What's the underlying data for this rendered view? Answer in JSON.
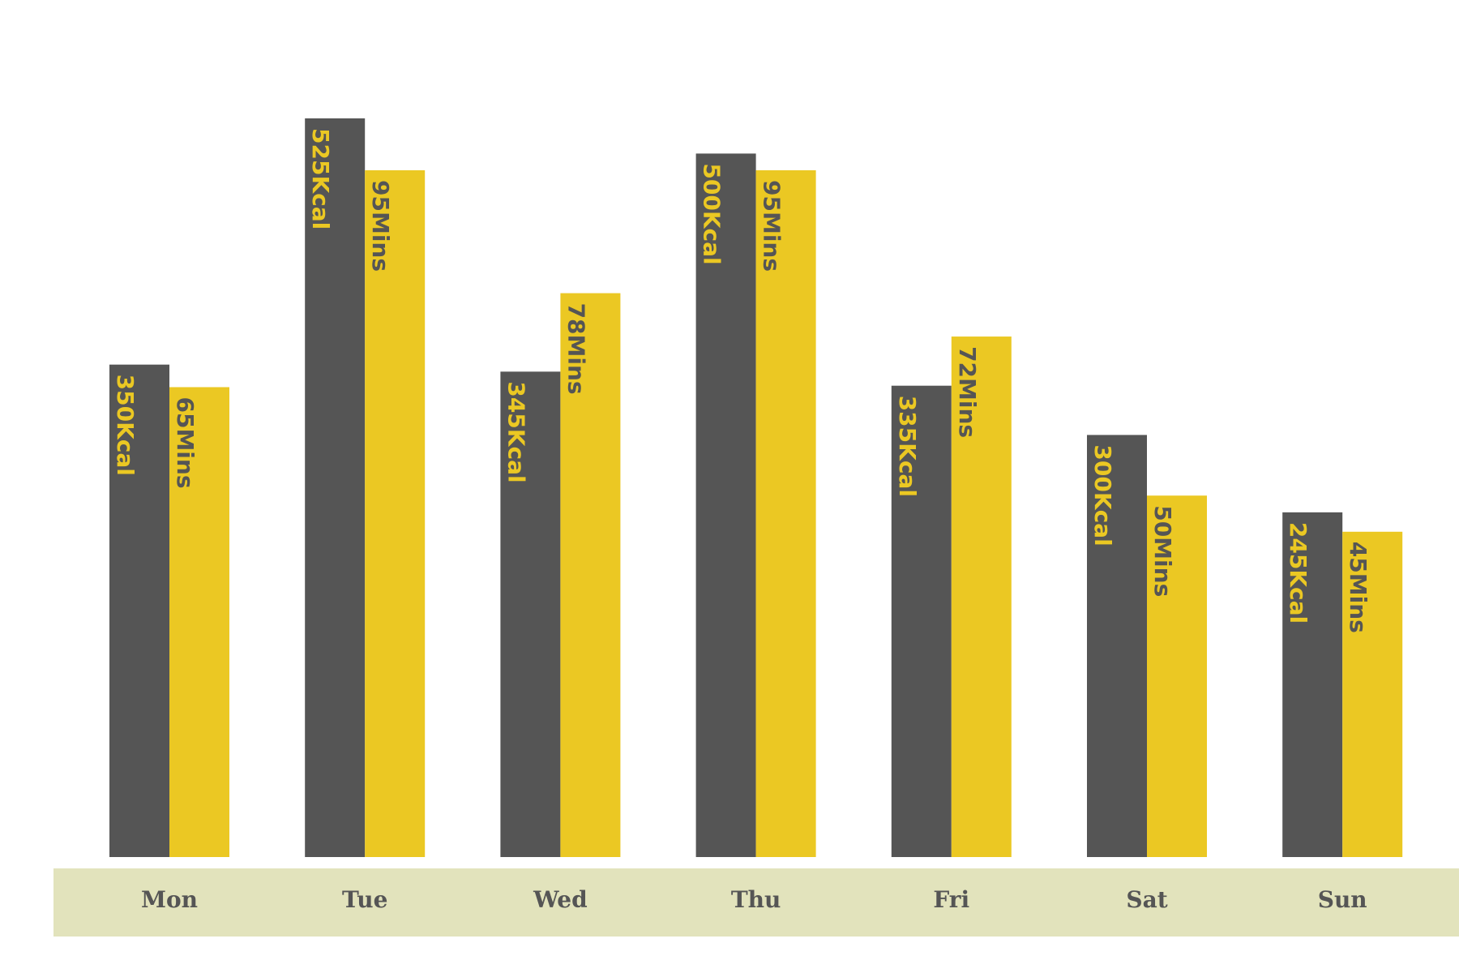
{
  "colors": {
    "calories": "#555555",
    "minutes": "#EBC823",
    "axis_band": "#E2E3BC",
    "day_text": "#555555"
  },
  "chart_data": {
    "type": "bar",
    "categories": [
      "Mon",
      "Tue",
      "Wed",
      "Thu",
      "Fri",
      "Sat",
      "Sun"
    ],
    "series": [
      {
        "key": "calories",
        "values": [
          350,
          525,
          345,
          500,
          335,
          300,
          245
        ],
        "labels": [
          "350Kcal",
          "525Kcal",
          "345Kcal",
          "500Kcal",
          "335Kcal",
          "300Kcal",
          "245Kcal"
        ]
      },
      {
        "key": "minutes",
        "values": [
          65,
          95,
          78,
          95,
          72,
          50,
          45
        ],
        "labels": [
          "65Mins",
          "95Mins",
          "78Mins",
          "95Mins",
          "72Mins",
          "50Mins",
          "45Mins"
        ]
      }
    ],
    "ylim_calories": [
      0,
      600
    ],
    "ylim_minutes": [
      0,
      110
    ],
    "grid": false,
    "legend": "none"
  }
}
